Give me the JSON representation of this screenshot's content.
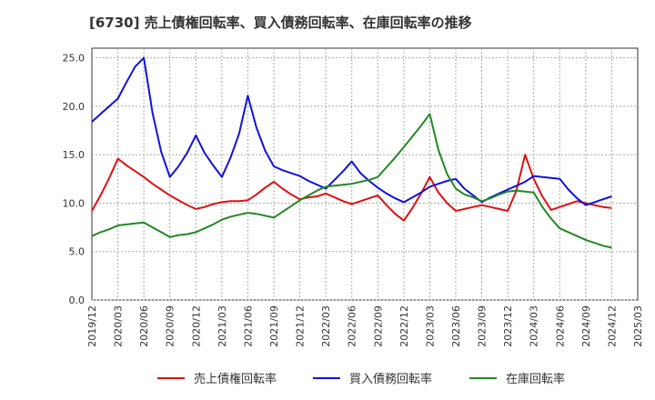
{
  "chart_data": {
    "type": "line",
    "title": "[6730]  売上債権回転率、買入債務回転率、在庫回転率の推移",
    "xlabel": "",
    "ylabel": "",
    "ylim": [
      0,
      26
    ],
    "yticks": [
      "0.0",
      "5.0",
      "10.0",
      "15.0",
      "20.0",
      "25.0"
    ],
    "ytick_values": [
      0,
      5,
      10,
      15,
      20,
      25
    ],
    "grid": true,
    "legend_position": "bottom",
    "categories": [
      "2019/12",
      "2020/03",
      "2020/06",
      "2020/09",
      "2020/12",
      "2021/03",
      "2021/06",
      "2021/09",
      "2021/12",
      "2022/03",
      "2022/06",
      "2022/09",
      "2022/12",
      "2023/03",
      "2023/06",
      "2023/09",
      "2023/12",
      "2024/03",
      "2024/06",
      "2024/09",
      "2024/12",
      "2025/03"
    ],
    "x": [
      0,
      0.333,
      0.667,
      1,
      1.333,
      1.667,
      2,
      2.333,
      2.667,
      3,
      3.333,
      3.667,
      4,
      4.333,
      4.667,
      5,
      5.333,
      5.667,
      6,
      6.333,
      6.667,
      7,
      7.333,
      7.667,
      8,
      8.333,
      8.667,
      9,
      9.333,
      9.667,
      10,
      10.333,
      10.667,
      11,
      11.333,
      11.667,
      12,
      12.333,
      12.667,
      13,
      13.333,
      13.667,
      14,
      14.333,
      14.667,
      15,
      15.333,
      15.667,
      16,
      16.333,
      16.667,
      17,
      17.333,
      17.667,
      18,
      18.333,
      18.667,
      19,
      19.333,
      19.667,
      20
    ],
    "series": [
      {
        "name": "売上債権回転率",
        "color": "#dd1111",
        "values": [
          9.2,
          10.8,
          12.6,
          14.6,
          13.9,
          13.3,
          12.7,
          12.0,
          11.4,
          10.8,
          10.3,
          9.8,
          9.4,
          9.6,
          9.9,
          10.1,
          10.2,
          10.2,
          10.3,
          10.9,
          11.6,
          12.2,
          11.5,
          10.9,
          10.4,
          10.6,
          10.7,
          11.0,
          10.6,
          10.2,
          9.9,
          10.2,
          10.5,
          10.8,
          9.8,
          8.9,
          8.2,
          9.5,
          11.0,
          12.7,
          11.1,
          10.0,
          9.2,
          9.4,
          9.6,
          9.8,
          9.6,
          9.4,
          9.2,
          11.3,
          15.0,
          12.5,
          10.7,
          9.3,
          9.6,
          9.9,
          10.2,
          10.0,
          9.8,
          9.6,
          9.5
        ],
        "legend_label": "売上債権回転率"
      },
      {
        "name": "買入債務回転率",
        "color": "#1111dd",
        "values": [
          18.4,
          19.2,
          20.0,
          20.8,
          22.5,
          24.1,
          25.0,
          19.3,
          15.3,
          12.7,
          13.8,
          15.2,
          17.0,
          15.2,
          13.9,
          12.7,
          14.7,
          17.2,
          21.1,
          17.8,
          15.4,
          13.8,
          13.4,
          13.1,
          12.8,
          12.3,
          11.9,
          11.5,
          12.4,
          13.3,
          14.3,
          13.1,
          12.3,
          11.6,
          11.0,
          10.5,
          10.1,
          10.6,
          11.1,
          11.7,
          12.0,
          12.3,
          12.5,
          11.5,
          10.8,
          10.1,
          10.6,
          11.0,
          11.4,
          11.8,
          12.2,
          12.8,
          12.7,
          12.6,
          12.5,
          11.4,
          10.5,
          9.8,
          10.1,
          10.4,
          10.7
        ],
        "legend_label": "買入債務回転率"
      },
      {
        "name": "在庫回転率",
        "color": "#228822",
        "values": [
          6.6,
          7.0,
          7.3,
          7.7,
          7.8,
          7.9,
          8.0,
          7.5,
          7.0,
          6.5,
          6.7,
          6.8,
          7.0,
          7.4,
          7.8,
          8.3,
          8.6,
          8.8,
          9.0,
          8.9,
          8.7,
          8.5,
          9.1,
          9.7,
          10.3,
          10.8,
          11.3,
          11.7,
          11.8,
          11.9,
          12.0,
          12.2,
          12.4,
          12.7,
          13.7,
          14.7,
          15.8,
          16.9,
          18.0,
          19.2,
          15.5,
          13.0,
          11.5,
          10.9,
          10.6,
          10.2,
          10.5,
          10.9,
          11.2,
          11.3,
          11.2,
          11.1,
          9.6,
          8.4,
          7.4,
          7.0,
          6.6,
          6.2,
          5.9,
          5.6,
          5.4
        ],
        "legend_label": "在庫回転率"
      }
    ]
  }
}
